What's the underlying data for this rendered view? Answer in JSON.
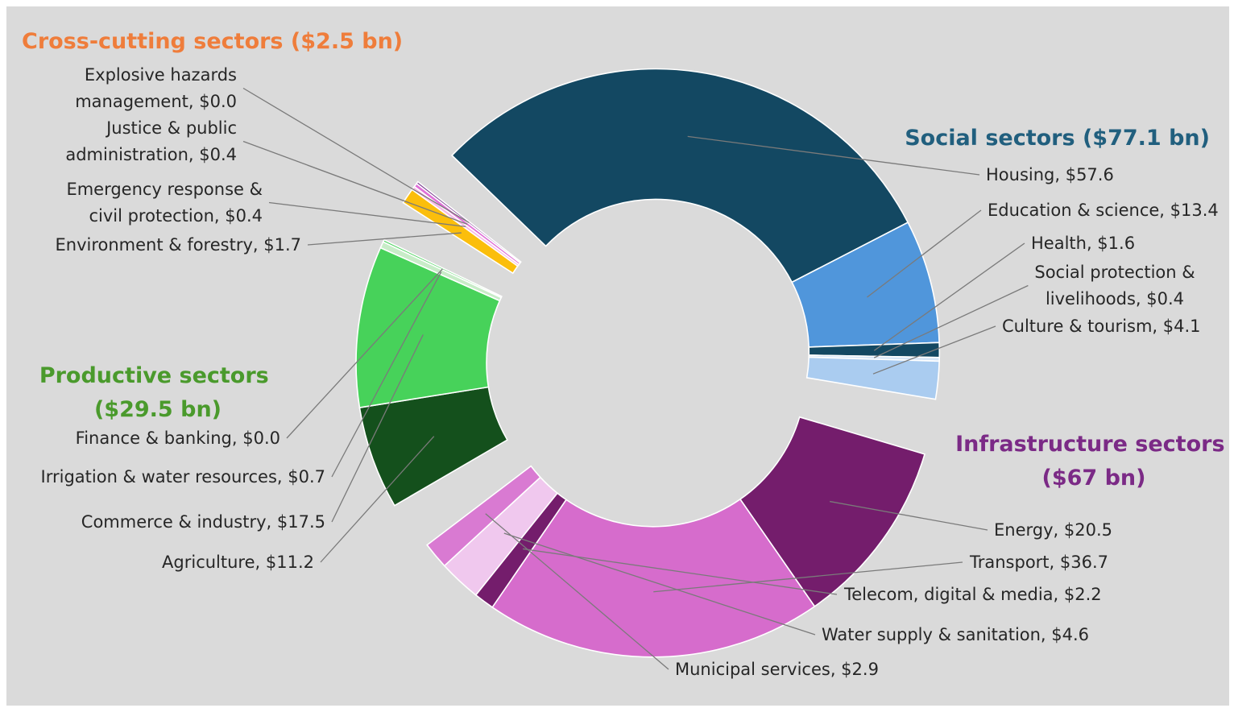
{
  "chart_data": {
    "type": "pie",
    "style": "donut",
    "unit": "$ bn",
    "groups": [
      {
        "key": "social",
        "title": "Social sectors ($77.1 bn)",
        "color": "#215f7e",
        "slices": [
          {
            "label": "Housing, $57.6",
            "value": 57.6,
            "color": "#134862"
          },
          {
            "label": "Education & science, $13.4",
            "value": 13.4,
            "color": "#5096db"
          },
          {
            "label": "Health, $1.6",
            "value": 1.6,
            "color": "#134862"
          },
          {
            "label": "Social protection & livelihoods, $0.4",
            "value": 0.4,
            "color": "#d6e6f7"
          },
          {
            "label": "Culture & tourism, $4.1",
            "value": 4.1,
            "color": "#aaccf0"
          }
        ]
      },
      {
        "key": "infrastructure",
        "title": "Infrastructure sectors ($67 bn)",
        "color": "#7b2a86",
        "slices": [
          {
            "label": "Energy, $20.5",
            "value": 20.5,
            "color": "#741d6c"
          },
          {
            "label": "Transport, $36.7",
            "value": 36.7,
            "color": "#d66ccc"
          },
          {
            "label": "Telecom, digital & media, $2.2",
            "value": 2.2,
            "color": "#741d6c"
          },
          {
            "label": "Water supply & sanitation, $4.6",
            "value": 4.6,
            "color": "#f0c8ee"
          },
          {
            "label": "Municipal services, $2.9",
            "value": 2.9,
            "color": "#d97ad2"
          }
        ]
      },
      {
        "key": "productive",
        "title": "Productive sectors ($29.5 bn)",
        "color": "#4a9a2c",
        "slices": [
          {
            "label": "Agriculture, $11.2",
            "value": 11.2,
            "color": "#14501c"
          },
          {
            "label": "Commerce & industry, $17.5",
            "value": 17.5,
            "color": "#47d25a"
          },
          {
            "label": "Irrigation & water resources, $0.7",
            "value": 0.7,
            "color": "#c8ecc8"
          },
          {
            "label": "Finance & banking, $0.0",
            "value": 0.0,
            "color": "#47d25a"
          }
        ]
      },
      {
        "key": "crosscutting",
        "title": "Cross-cutting sectors ($2.5 bn)",
        "color": "#ef7d3b",
        "slices": [
          {
            "label": "Environment & forestry, $1.7",
            "value": 1.7,
            "color": "#fbbe0c"
          },
          {
            "label": "Emergency response & civil protection, $0.4",
            "value": 0.4,
            "color": "#f5b8e6"
          },
          {
            "label": "Justice & public administration, $0.4",
            "value": 0.4,
            "color": "#e070d8"
          },
          {
            "label": "Explosive hazards management, $0.0",
            "value": 0.0,
            "color": "#7a4090"
          }
        ]
      }
    ]
  }
}
